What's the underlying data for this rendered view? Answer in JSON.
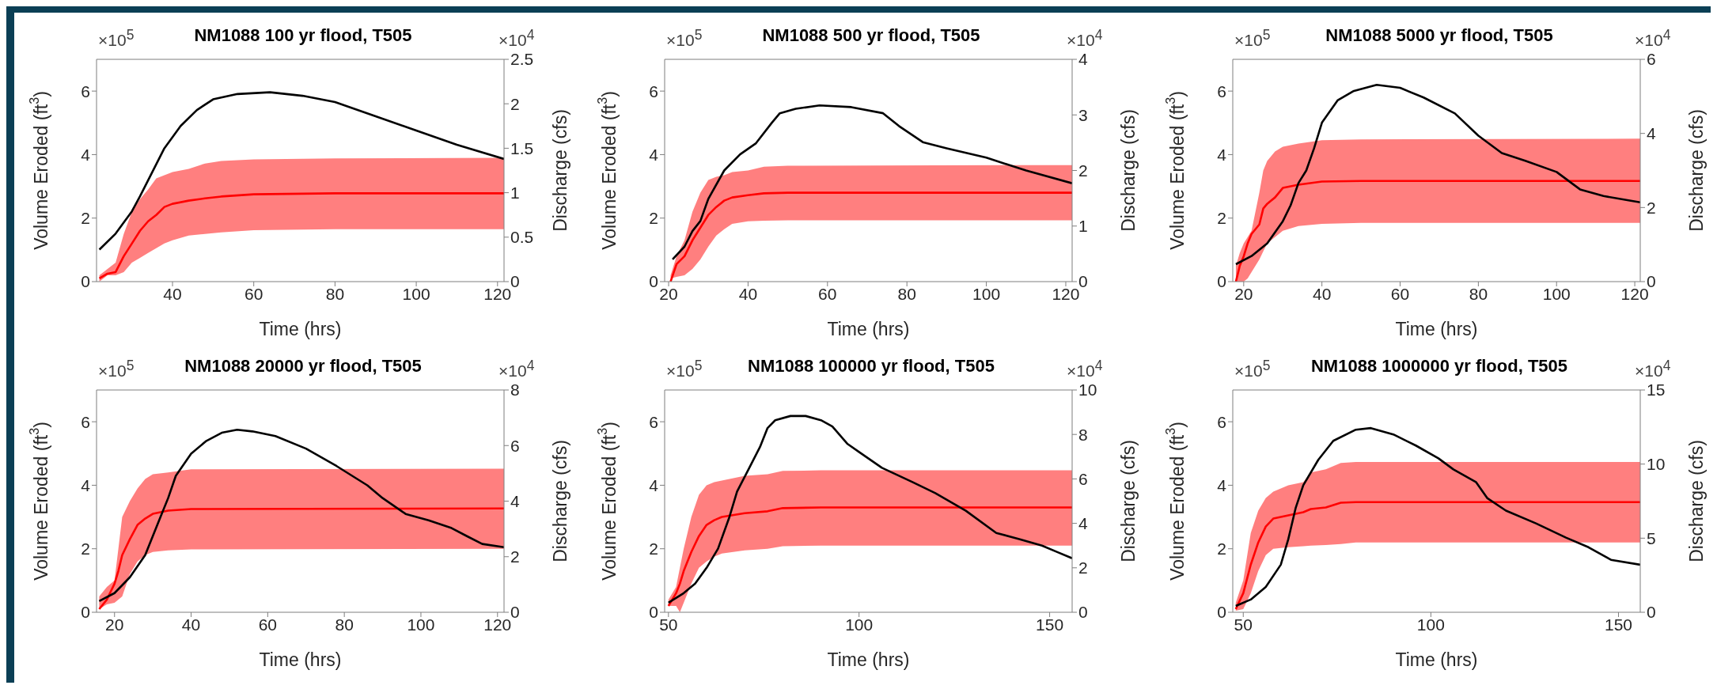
{
  "chart_data": [
    {
      "type": "line",
      "title": "NM1088 100 yr flood, T505",
      "xlabel": "Time (hrs)",
      "ylabel": "Volume Eroded (ft$^{3}$)",
      "y2label": "Discharge (cfs)",
      "annotations": [
        "×10$^{5}$",
        "×10$^{4}$"
      ],
      "xlim": [
        21.3,
        121.6
      ],
      "xticks": [
        40,
        60,
        80,
        100,
        120
      ],
      "ylim": [
        0,
        7
      ],
      "yticks": [
        0,
        2,
        4,
        6
      ],
      "y2lim": [
        0,
        2.5
      ],
      "y2ticks": [
        0,
        0.5,
        1,
        1.5,
        2,
        2.5
      ],
      "series": [
        {
          "color": "#ff0000",
          "x": [
            22,
            24,
            26,
            28,
            30,
            32,
            34,
            36,
            38,
            40,
            44,
            48,
            52,
            60,
            80,
            121.6
          ],
          "values": [
            0.1,
            0.25,
            0.3,
            0.8,
            1.2,
            1.6,
            1.9,
            2.1,
            2.35,
            2.45,
            2.55,
            2.62,
            2.68,
            2.75,
            2.78,
            2.78
          ],
          "lower": [
            0,
            0.2,
            0.2,
            0.3,
            0.6,
            0.75,
            0.9,
            1.05,
            1.2,
            1.3,
            1.45,
            1.5,
            1.55,
            1.62,
            1.65,
            1.65
          ],
          "upper": [
            0.2,
            0.4,
            0.6,
            1.5,
            2.2,
            2.6,
            2.9,
            3.25,
            3.35,
            3.45,
            3.55,
            3.72,
            3.8,
            3.85,
            3.88,
            3.9
          ]
        },
        {
          "axis": "y2",
          "color": "#000000",
          "x": [
            22,
            26,
            30,
            32,
            34,
            38,
            42,
            46,
            50,
            56,
            64,
            72,
            80,
            90,
            100,
            110,
            121.6
          ],
          "values": [
            0.36,
            0.54,
            0.79,
            0.96,
            1.14,
            1.5,
            1.75,
            1.93,
            2.05,
            2.11,
            2.13,
            2.09,
            2.02,
            1.86,
            1.7,
            1.54,
            1.38
          ]
        }
      ]
    },
    {
      "type": "line",
      "title": "NM1088 500 yr flood, T505",
      "xlabel": "Time (hrs)",
      "ylabel": "Volume Eroded (ft$^{3}$)",
      "y2label": "Discharge (cfs)",
      "annotations": [
        "×10$^{5}$",
        "×10$^{4}$"
      ],
      "xlim": [
        19,
        121.6
      ],
      "xticks": [
        20,
        40,
        60,
        80,
        100,
        120
      ],
      "ylim": [
        0,
        7
      ],
      "yticks": [
        0,
        2,
        4,
        6
      ],
      "y2lim": [
        0,
        4
      ],
      "y2ticks": [
        0,
        1,
        2,
        3,
        4
      ],
      "series": [
        {
          "color": "#ff0000",
          "x": [
            20.5,
            22,
            24,
            26,
            28,
            30,
            32,
            34,
            36,
            40,
            44,
            50,
            121.6
          ],
          "values": [
            0,
            0.55,
            0.8,
            1.3,
            1.7,
            2.1,
            2.35,
            2.55,
            2.65,
            2.72,
            2.78,
            2.8,
            2.8
          ],
          "lower": [
            0.1,
            0.15,
            0.2,
            0.4,
            0.7,
            1.1,
            1.45,
            1.65,
            1.82,
            1.9,
            1.92,
            1.93,
            1.93
          ],
          "upper": [
            0.2,
            0.8,
            1.3,
            2.2,
            2.8,
            3.2,
            3.3,
            3.35,
            3.45,
            3.5,
            3.62,
            3.65,
            3.67
          ]
        },
        {
          "axis": "y2",
          "color": "#000000",
          "x": [
            21,
            24,
            26,
            28,
            30,
            34,
            38,
            42,
            46,
            48,
            52,
            58,
            66,
            74,
            78,
            84,
            90,
            100,
            110,
            121.6
          ],
          "values": [
            0.4,
            0.63,
            0.91,
            1.09,
            1.49,
            2.0,
            2.29,
            2.49,
            2.86,
            3.03,
            3.11,
            3.17,
            3.14,
            3.03,
            2.8,
            2.51,
            2.4,
            2.23,
            2.0,
            1.77
          ]
        }
      ]
    },
    {
      "type": "line",
      "title": "NM1088 5000 yr flood, T505",
      "xlabel": "Time (hrs)",
      "ylabel": "Volume Eroded (ft$^{3}$)",
      "y2label": "Discharge (cfs)",
      "annotations": [
        "×10$^{5}$",
        "×10$^{4}$"
      ],
      "xlim": [
        17.2,
        121.4
      ],
      "xticks": [
        20,
        40,
        60,
        80,
        100,
        120
      ],
      "ylim": [
        0,
        7
      ],
      "yticks": [
        0,
        2,
        4,
        6
      ],
      "y2lim": [
        0,
        6
      ],
      "y2ticks": [
        0,
        2,
        4,
        6
      ],
      "series": [
        {
          "color": "#ff0000",
          "x": [
            18,
            19,
            20,
            21,
            22,
            24,
            25,
            26,
            28,
            30,
            34,
            40,
            50,
            121.4
          ],
          "values": [
            0,
            0.5,
            0.8,
            1.2,
            1.5,
            1.8,
            2.3,
            2.45,
            2.65,
            2.95,
            3.05,
            3.15,
            3.17,
            3.17
          ],
          "lower": [
            0,
            0,
            0,
            0.1,
            0.3,
            0.7,
            0.95,
            1.2,
            1.4,
            1.6,
            1.75,
            1.82,
            1.85,
            1.85
          ],
          "upper": [
            0.5,
            0.9,
            1.2,
            1.4,
            1.6,
            2.8,
            3.5,
            3.8,
            4.1,
            4.25,
            4.35,
            4.45,
            4.48,
            4.5
          ]
        },
        {
          "axis": "y2",
          "color": "#000000",
          "x": [
            18,
            22,
            26,
            30,
            32,
            34,
            36,
            38,
            40,
            44,
            48,
            54,
            60,
            66,
            74,
            80,
            86,
            92,
            100,
            106,
            112,
            121.4
          ],
          "values": [
            0.47,
            0.69,
            1.03,
            1.63,
            2.06,
            2.66,
            3.0,
            3.6,
            4.29,
            4.89,
            5.14,
            5.31,
            5.23,
            4.97,
            4.54,
            3.94,
            3.47,
            3.26,
            2.96,
            2.49,
            2.31,
            2.14
          ]
        }
      ]
    },
    {
      "type": "line",
      "title": "NM1088 20000 yr flood, T505",
      "xlabel": "Time (hrs)",
      "ylabel": "Volume Eroded (ft$^{3}$)",
      "y2label": "Discharge (cfs)",
      "annotations": [
        "×10$^{5}$",
        "×10$^{4}$"
      ],
      "xlim": [
        15.3,
        121.7
      ],
      "xticks": [
        20,
        40,
        60,
        80,
        100,
        120
      ],
      "ylim": [
        0,
        7
      ],
      "yticks": [
        0,
        2,
        4,
        6
      ],
      "y2lim": [
        0,
        8
      ],
      "y2ticks": [
        0,
        2,
        4,
        6,
        8
      ],
      "series": [
        {
          "color": "#ff0000",
          "x": [
            16,
            18,
            20,
            21,
            22,
            24,
            26,
            28,
            30,
            34,
            40,
            121.7
          ],
          "values": [
            0.1,
            0.4,
            0.9,
            1.3,
            1.8,
            2.3,
            2.75,
            2.95,
            3.1,
            3.2,
            3.25,
            3.27
          ],
          "lower": [
            0.1,
            0.25,
            0.3,
            0.4,
            0.5,
            1.2,
            1.6,
            1.8,
            1.9,
            1.95,
            1.98,
            2.0
          ],
          "upper": [
            0.5,
            0.8,
            1.0,
            2.0,
            3.0,
            3.5,
            3.9,
            4.2,
            4.35,
            4.4,
            4.5,
            4.52
          ]
        },
        {
          "axis": "y2",
          "color": "#000000",
          "x": [
            16,
            20,
            24,
            28,
            32,
            34,
            36,
            40,
            44,
            48,
            52,
            56,
            62,
            70,
            78,
            86,
            90,
            96,
            102,
            108,
            112,
            116,
            121.7
          ],
          "values": [
            0.4,
            0.69,
            1.26,
            2.06,
            3.43,
            4.11,
            4.91,
            5.71,
            6.17,
            6.46,
            6.57,
            6.51,
            6.34,
            5.89,
            5.26,
            4.57,
            4.11,
            3.54,
            3.31,
            3.03,
            2.74,
            2.46,
            2.34
          ]
        }
      ]
    },
    {
      "type": "line",
      "title": "NM1088 100000 yr flood, T505",
      "xlabel": "Time (hrs)",
      "ylabel": "Volume Eroded (ft$^{3}$)",
      "y2label": "Discharge (cfs)",
      "annotations": [
        "×10$^{5}$",
        "×10$^{4}$"
      ],
      "xlim": [
        49,
        155.9
      ],
      "xticks": [
        50,
        100,
        150
      ],
      "ylim": [
        0,
        7
      ],
      "yticks": [
        0,
        2,
        4,
        6
      ],
      "y2lim": [
        0,
        10
      ],
      "y2ticks": [
        0,
        2,
        4,
        6,
        8,
        10
      ],
      "series": [
        {
          "color": "#ff0000",
          "x": [
            50,
            52,
            53,
            54,
            56,
            58,
            60,
            62,
            64,
            70,
            76,
            80,
            90,
            155.9
          ],
          "values": [
            0.2,
            0.6,
            0.9,
            1.3,
            1.9,
            2.4,
            2.75,
            2.9,
            3.0,
            3.12,
            3.18,
            3.28,
            3.3,
            3.3
          ],
          "lower": [
            0.2,
            0.2,
            0,
            0.3,
            0.9,
            1.4,
            1.6,
            1.75,
            1.85,
            1.95,
            2.0,
            2.08,
            2.1,
            2.1
          ],
          "upper": [
            0.4,
            0.8,
            1.4,
            2.0,
            3.0,
            3.7,
            4.0,
            4.1,
            4.15,
            4.3,
            4.35,
            4.45,
            4.47,
            4.47
          ]
        },
        {
          "axis": "y2",
          "color": "#000000",
          "x": [
            50,
            54,
            57,
            60,
            63,
            66,
            68,
            71,
            74,
            76,
            78,
            82,
            86,
            90,
            93,
            97,
            100,
            106,
            114,
            120,
            128,
            136,
            142,
            148,
            152,
            155.9
          ],
          "values": [
            0.43,
            0.86,
            1.29,
            2.0,
            2.86,
            4.29,
            5.43,
            6.43,
            7.43,
            8.29,
            8.64,
            8.83,
            8.83,
            8.64,
            8.36,
            7.57,
            7.21,
            6.5,
            5.86,
            5.36,
            4.57,
            3.57,
            3.29,
            3.0,
            2.71,
            2.43
          ]
        }
      ]
    },
    {
      "type": "line",
      "title": "NM1088 1000000 yr flood, T505",
      "xlabel": "Time (hrs)",
      "ylabel": "Volume Eroded (ft$^{3}$)",
      "y2label": "Discharge (cfs)",
      "annotations": [
        "×10$^{5}$",
        "×10$^{4}$"
      ],
      "xlim": [
        47.2,
        155.8
      ],
      "xticks": [
        50,
        100,
        150
      ],
      "ylim": [
        0,
        7
      ],
      "yticks": [
        0,
        2,
        4,
        6
      ],
      "y2lim": [
        0,
        15
      ],
      "y2ticks": [
        0,
        5,
        10,
        15
      ],
      "series": [
        {
          "color": "#ff0000",
          "x": [
            48,
            50,
            52,
            54,
            56,
            58,
            62,
            66,
            68,
            72,
            76,
            80,
            155.8
          ],
          "values": [
            0.1,
            0.6,
            1.5,
            2.2,
            2.7,
            2.95,
            3.05,
            3.15,
            3.25,
            3.3,
            3.45,
            3.47,
            3.47
          ],
          "lower": [
            0.05,
            0.1,
            0.6,
            1.3,
            1.8,
            2.0,
            2.05,
            2.08,
            2.1,
            2.12,
            2.15,
            2.2,
            2.2
          ],
          "upper": [
            0.3,
            1.0,
            2.5,
            3.2,
            3.6,
            3.8,
            4.0,
            4.1,
            4.4,
            4.5,
            4.7,
            4.73,
            4.73
          ]
        },
        {
          "axis": "y2",
          "color": "#000000",
          "x": [
            48,
            52,
            56,
            60,
            62,
            64,
            66,
            70,
            74,
            80,
            84,
            90,
            96,
            102,
            106,
            112,
            115,
            120,
            128,
            136,
            142,
            148,
            155.8
          ],
          "values": [
            0.43,
            0.86,
            1.71,
            3.21,
            4.93,
            7.07,
            8.57,
            10.29,
            11.57,
            12.32,
            12.43,
            12.0,
            11.25,
            10.39,
            9.64,
            8.79,
            7.71,
            6.86,
            6.0,
            5.04,
            4.39,
            3.54,
            3.21
          ]
        }
      ]
    }
  ]
}
